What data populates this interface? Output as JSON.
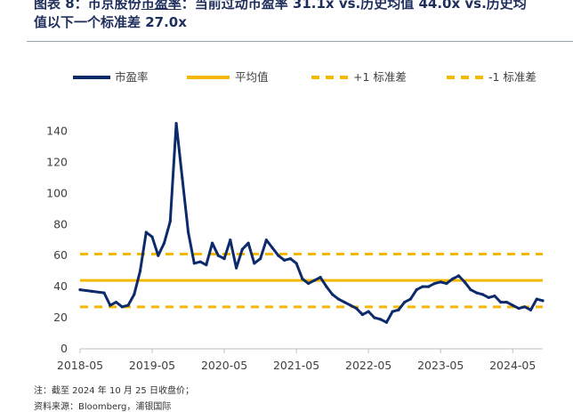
{
  "caption": {
    "line1_prefix": "图表 8：",
    "line1_rest": "市京股份",
    "line1_underlined": "市盈率",
    "line1_suffix": "：当前过动市盈率 31.1x vs.历史均值 44.0x vs.历史均",
    "line2": "值以下一个标准差 27.0x"
  },
  "notes": {
    "note1": "注：截至 2024 年 10 月 25 日收盘价；",
    "note2": "资料来源：Bloomberg，浦银国际"
  },
  "colors": {
    "series": "#0d2a6b",
    "mean": "#f5b800",
    "band": "#f5b800",
    "axis": "#bfbfbf"
  },
  "chart_data": {
    "type": "line",
    "title": "",
    "xlabel": "",
    "ylabel": "",
    "x_ticks": [
      "2018-05",
      "2019-05",
      "2020-05",
      "2021-05",
      "2022-05",
      "2023-05",
      "2024-05"
    ],
    "x_range": [
      "2018-05",
      "2024-10"
    ],
    "ylim": [
      0,
      150
    ],
    "y_ticks": [
      0,
      20,
      40,
      60,
      80,
      100,
      120,
      140
    ],
    "grid": false,
    "legend_position": "top",
    "legend": [
      "市盈率",
      "平均值",
      "+1 标准差",
      "-1 标准差"
    ],
    "mean": 44.0,
    "plus_1_sd": 61.0,
    "minus_1_sd": 27.0,
    "series": [
      {
        "name": "市盈率",
        "x": [
          "2018-05",
          "2018-07",
          "2018-09",
          "2018-10",
          "2018-11",
          "2018-12",
          "2019-01",
          "2019-02",
          "2019-03",
          "2019-04",
          "2019-05",
          "2019-06",
          "2019-07",
          "2019-08",
          "2019-09",
          "2019-10",
          "2019-11",
          "2019-12",
          "2020-01",
          "2020-02",
          "2020-03",
          "2020-04",
          "2020-05",
          "2020-06",
          "2020-07",
          "2020-08",
          "2020-09",
          "2020-10",
          "2020-11",
          "2020-12",
          "2021-01",
          "2021-02",
          "2021-03",
          "2021-04",
          "2021-05",
          "2021-06",
          "2021-07",
          "2021-08",
          "2021-09",
          "2021-10",
          "2021-11",
          "2021-12",
          "2022-01",
          "2022-02",
          "2022-03",
          "2022-04",
          "2022-05",
          "2022-06",
          "2022-07",
          "2022-08",
          "2022-09",
          "2022-10",
          "2022-11",
          "2022-12",
          "2023-01",
          "2023-02",
          "2023-03",
          "2023-04",
          "2023-05",
          "2023-06",
          "2023-07",
          "2023-08",
          "2023-09",
          "2023-10",
          "2023-11",
          "2023-12",
          "2024-01",
          "2024-02",
          "2024-03",
          "2024-04",
          "2024-05",
          "2024-06",
          "2024-07",
          "2024-08",
          "2024-09",
          "2024-10"
        ],
        "values": [
          38,
          37,
          36,
          28,
          30,
          27,
          28,
          35,
          50,
          75,
          72,
          60,
          68,
          82,
          145,
          110,
          75,
          55,
          56,
          54,
          68,
          60,
          58,
          70,
          52,
          64,
          68,
          55,
          58,
          70,
          65,
          60,
          57,
          58,
          55,
          45,
          42,
          44,
          46,
          40,
          35,
          32,
          30,
          28,
          26,
          22,
          24,
          20,
          19,
          17,
          24,
          25,
          30,
          32,
          38,
          40,
          40,
          42,
          43,
          42,
          45,
          47,
          43,
          38,
          36,
          35,
          33,
          34,
          30,
          30,
          28,
          26,
          27,
          25,
          32,
          31
        ]
      }
    ]
  }
}
